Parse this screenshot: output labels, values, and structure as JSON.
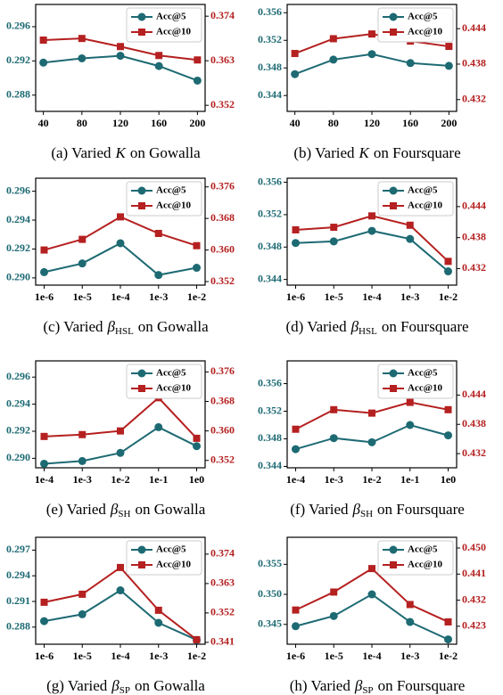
{
  "chart_data": [
    {
      "type": "line",
      "caption": {
        "prefix": "(a) Varied",
        "symbol": "K",
        "suffix": "on Gowalla"
      },
      "x": [
        40,
        80,
        120,
        160,
        200
      ],
      "xlim": [
        32,
        208
      ],
      "xticks": [
        40,
        80,
        120,
        160,
        200
      ],
      "ylim": [
        0.2861,
        0.2986
      ],
      "yticks": [
        0.288,
        0.292,
        0.296
      ],
      "y2lim": [
        0.3505,
        0.3769
      ],
      "y2ticks": [
        0.352,
        0.363,
        0.374
      ],
      "legend": "upper right",
      "series": [
        {
          "name": "Acc@5",
          "color": "#1d6a73",
          "marker": "circle",
          "values": [
            0.2918,
            0.2923,
            0.2926,
            0.2914,
            0.2897
          ]
        },
        {
          "name": "Acc@10",
          "color": "#b52020",
          "marker": "square",
          "axis": "y2",
          "values": [
            0.3681,
            0.3685,
            0.3665,
            0.3643,
            0.3632
          ]
        }
      ]
    },
    {
      "type": "line",
      "caption": {
        "prefix": "(b) Varied",
        "symbol": "K",
        "suffix": "on Foursquare"
      },
      "x": [
        40,
        80,
        120,
        160,
        200
      ],
      "xlim": [
        32,
        208
      ],
      "xticks": [
        40,
        80,
        120,
        160,
        200
      ],
      "ylim": [
        0.3417,
        0.3572
      ],
      "yticks": [
        0.344,
        0.348,
        0.352,
        0.356
      ],
      "y2lim": [
        0.43,
        0.4481
      ],
      "y2ticks": [
        0.432,
        0.438,
        0.444
      ],
      "legend": "upper right",
      "series": [
        {
          "name": "Acc@5",
          "color": "#1d6a73",
          "marker": "circle",
          "values": [
            0.3471,
            0.3492,
            0.35,
            0.3487,
            0.3483
          ]
        },
        {
          "name": "Acc@10",
          "color": "#b52020",
          "marker": "square",
          "axis": "y2",
          "values": [
            0.4398,
            0.4423,
            0.4431,
            0.4419,
            0.441
          ]
        }
      ]
    },
    {
      "type": "line",
      "caption": {
        "prefix": "(c) Varied",
        "symbol": "β",
        "subscript": "HSL",
        "suffix": "on Gowalla"
      },
      "categories": [
        "1e-6",
        "1e-5",
        "1e-4",
        "1e-3",
        "1e-2"
      ],
      "ylim": [
        0.2895,
        0.2969
      ],
      "yticks": [
        {
          "value": 0.29,
          "label": "0.290"
        },
        0.292,
        0.294,
        0.296
      ],
      "y2lim": [
        0.3511,
        0.3782
      ],
      "y2ticks": [
        0.352,
        {
          "value": 0.36,
          "label": "0.360"
        },
        0.368,
        0.376
      ],
      "legend": "upper right",
      "series": [
        {
          "name": "Acc@5",
          "color": "#1d6a73",
          "marker": "circle",
          "values": [
            0.2904,
            0.291,
            0.2924,
            0.2902,
            0.2907
          ]
        },
        {
          "name": "Acc@10",
          "color": "#b52020",
          "marker": "square",
          "axis": "y2",
          "values": [
            0.36,
            0.3627,
            0.3684,
            0.3642,
            0.3611
          ]
        }
      ]
    },
    {
      "type": "line",
      "caption": {
        "prefix": "(d) Varied",
        "symbol": "β",
        "subscript": "HSL",
        "suffix": "on Foursquare"
      },
      "categories": [
        "1e-6",
        "1e-5",
        "1e-4",
        "1e-3",
        "1e-2"
      ],
      "ylim": [
        0.3433,
        0.3565
      ],
      "yticks": [
        0.344,
        0.348,
        0.352,
        0.356
      ],
      "y2lim": [
        0.4288,
        0.4495
      ],
      "y2ticks": [
        0.432,
        0.438,
        0.444
      ],
      "legend": "upper right",
      "series": [
        {
          "name": "Acc@5",
          "color": "#1d6a73",
          "marker": "circle",
          "values": [
            0.3485,
            0.3487,
            0.35,
            0.349,
            0.345
          ]
        },
        {
          "name": "Acc@10",
          "color": "#b52020",
          "marker": "square",
          "axis": "y2",
          "values": [
            0.4395,
            0.44,
            0.4422,
            0.4404,
            0.4334
          ]
        }
      ]
    },
    {
      "type": "line",
      "caption": {
        "prefix": "(e) Varied",
        "symbol": "β",
        "subscript": "SH",
        "suffix": "on Gowalla"
      },
      "categories": [
        "1e-4",
        "1e-3",
        "1e-2",
        "1e-1",
        "1e0"
      ],
      "ylim": [
        0.2893,
        0.2972
      ],
      "yticks": [
        {
          "value": 0.29,
          "label": "0.290"
        },
        0.292,
        0.294,
        0.296
      ],
      "y2lim": [
        0.35,
        0.379
      ],
      "y2ticks": [
        0.352,
        {
          "value": 0.36,
          "label": "0.360"
        },
        0.368,
        0.376
      ],
      "legend": "upper right",
      "series": [
        {
          "name": "Acc@5",
          "color": "#1d6a73",
          "marker": "circle",
          "values": [
            0.2896,
            0.2898,
            0.2904,
            0.2923,
            0.2909
          ]
        },
        {
          "name": "Acc@10",
          "color": "#b52020",
          "marker": "square",
          "axis": "y2",
          "values": [
            0.3585,
            0.359,
            0.36,
            0.369,
            0.358
          ]
        }
      ]
    },
    {
      "type": "line",
      "caption": {
        "prefix": "(f) Varied",
        "symbol": "β",
        "subscript": "SH",
        "suffix": "on Foursquare"
      },
      "categories": [
        "1e-4",
        "1e-3",
        "1e-2",
        "1e-1",
        "1e0"
      ],
      "ylim": [
        0.3438,
        0.3593
      ],
      "yticks": [
        0.344,
        0.348,
        0.352,
        0.356
      ],
      "y2lim": [
        0.4291,
        0.451
      ],
      "y2ticks": [
        0.432,
        0.438,
        0.444
      ],
      "legend": "upper right",
      "series": [
        {
          "name": "Acc@5",
          "color": "#1d6a73",
          "marker": "circle",
          "values": [
            0.3465,
            0.3481,
            0.3475,
            0.35,
            0.3485
          ]
        },
        {
          "name": "Acc@10",
          "color": "#b52020",
          "marker": "square",
          "axis": "y2",
          "values": [
            0.437,
            0.441,
            0.4403,
            0.4425,
            0.441
          ]
        }
      ]
    },
    {
      "type": "line",
      "caption": {
        "prefix": "(g) Varied",
        "symbol": "β",
        "subscript": "SP",
        "suffix": "on Gowalla"
      },
      "categories": [
        "1e-6",
        "1e-5",
        "1e-4",
        "1e-3",
        "1e-2"
      ],
      "ylim": [
        0.286,
        0.2985
      ],
      "yticks": [
        0.288,
        0.291,
        0.294,
        0.297
      ],
      "y2lim": [
        0.3403,
        0.3803
      ],
      "y2ticks": [
        0.341,
        0.352,
        0.363,
        0.374
      ],
      "legend": "upper right",
      "series": [
        {
          "name": "Acc@5",
          "color": "#1d6a73",
          "marker": "circle",
          "values": [
            0.2887,
            0.2895,
            0.2923,
            0.2885,
            0.2865
          ]
        },
        {
          "name": "Acc@10",
          "color": "#b52020",
          "marker": "square",
          "axis": "y2",
          "values": [
            0.356,
            0.359,
            0.369,
            0.353,
            0.342
          ]
        }
      ]
    },
    {
      "type": "line",
      "caption": {
        "prefix": "(h) Varied",
        "symbol": "β",
        "subscript": "SP",
        "suffix": "on Foursquare"
      },
      "categories": [
        "1e-6",
        "1e-5",
        "1e-4",
        "1e-3",
        "1e-2"
      ],
      "ylim": [
        0.3417,
        0.3595
      ],
      "yticks": [
        0.345,
        {
          "value": 0.35,
          "label": "0.350"
        },
        0.355
      ],
      "y2lim": [
        0.4168,
        0.4537
      ],
      "y2ticks": [
        0.423,
        0.432,
        0.441,
        {
          "value": 0.45,
          "label": "0.450"
        }
      ],
      "legend": "upper right",
      "series": [
        {
          "name": "Acc@5",
          "color": "#1d6a73",
          "marker": "circle",
          "values": [
            0.3447,
            0.3464,
            0.35,
            0.3454,
            0.3425
          ]
        },
        {
          "name": "Acc@10",
          "color": "#b52020",
          "marker": "square",
          "axis": "y2",
          "values": [
            0.4286,
            0.4348,
            0.4429,
            0.4305,
            0.4245
          ]
        }
      ]
    }
  ]
}
